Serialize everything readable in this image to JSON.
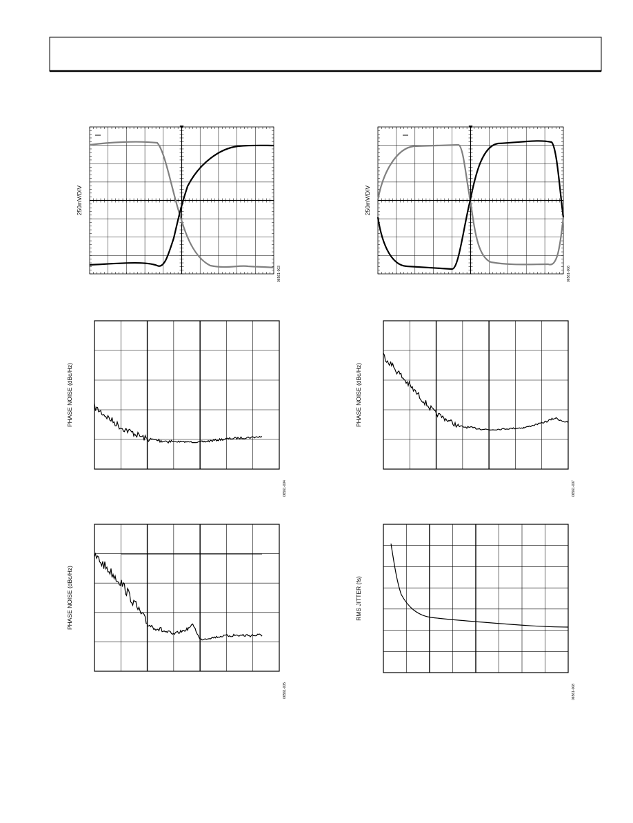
{
  "figures": [
    {
      "y_label": "250mV/DIV",
      "figure_id": "06561-003"
    },
    {
      "y_label": "250mV/DIV",
      "figure_id": "06561-006"
    },
    {
      "y_label": "PHASE NOISE (dBc/Hz)",
      "figure_id": "06561-004"
    },
    {
      "y_label": "PHASE NOISE (dBc/Hz)",
      "figure_id": "06561-007"
    },
    {
      "y_label": "PHASE NOISE (dBc/Hz)",
      "figure_id": "06561-005"
    },
    {
      "y_label": "RMS JITTER (fs)",
      "figure_id": "06561-008"
    }
  ]
}
